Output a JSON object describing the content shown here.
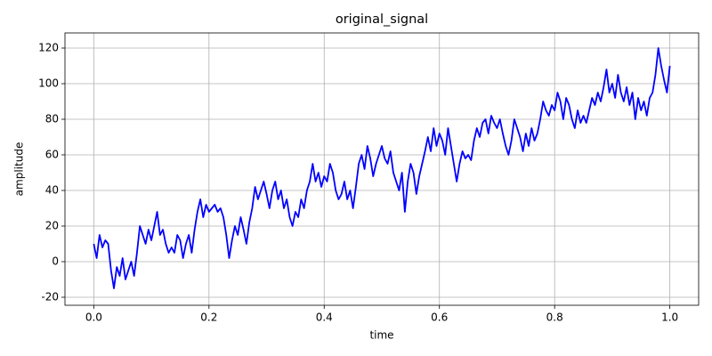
{
  "chart_data": {
    "type": "line",
    "title": "original_signal",
    "x_label": "time",
    "y_label": "amplitude",
    "color": "#0000ff",
    "grid": true,
    "xlim": [
      -0.05,
      1.05
    ],
    "ylim": [
      -24.5,
      128.5
    ],
    "xticks": [
      {
        "value": 0,
        "label": "0.0"
      },
      0.2,
      0.4,
      0.6,
      0.8,
      {
        "value": 1,
        "label": "1.0"
      }
    ],
    "yticks": [
      -20,
      0,
      20,
      40,
      60,
      80,
      100,
      120
    ],
    "x": [
      0,
      0.005,
      0.01,
      0.015,
      0.02,
      0.025,
      0.03,
      0.035,
      0.04,
      0.045,
      0.05,
      0.055,
      0.06,
      0.065,
      0.07,
      0.075,
      0.08,
      0.085,
      0.09,
      0.095,
      0.1,
      0.105,
      0.11,
      0.115,
      0.12,
      0.125,
      0.13,
      0.135,
      0.14,
      0.145,
      0.15,
      0.155,
      0.16,
      0.165,
      0.17,
      0.175,
      0.18,
      0.185,
      0.19,
      0.195,
      0.2,
      0.205,
      0.21,
      0.215,
      0.22,
      0.225,
      0.23,
      0.235,
      0.24,
      0.245,
      0.25,
      0.255,
      0.26,
      0.265,
      0.27,
      0.275,
      0.28,
      0.285,
      0.29,
      0.295,
      0.3,
      0.305,
      0.31,
      0.315,
      0.32,
      0.325,
      0.33,
      0.335,
      0.34,
      0.345,
      0.35,
      0.355,
      0.36,
      0.365,
      0.37,
      0.375,
      0.38,
      0.385,
      0.39,
      0.395,
      0.4,
      0.405,
      0.41,
      0.415,
      0.42,
      0.425,
      0.43,
      0.435,
      0.44,
      0.445,
      0.45,
      0.455,
      0.46,
      0.465,
      0.47,
      0.475,
      0.48,
      0.485,
      0.49,
      0.495,
      0.5,
      0.505,
      0.51,
      0.515,
      0.52,
      0.525,
      0.53,
      0.535,
      0.54,
      0.545,
      0.55,
      0.555,
      0.56,
      0.565,
      0.57,
      0.575,
      0.58,
      0.585,
      0.59,
      0.595,
      0.6,
      0.605,
      0.61,
      0.615,
      0.62,
      0.625,
      0.63,
      0.635,
      0.64,
      0.645,
      0.65,
      0.655,
      0.66,
      0.665,
      0.67,
      0.675,
      0.68,
      0.685,
      0.69,
      0.695,
      0.7,
      0.705,
      0.71,
      0.715,
      0.72,
      0.725,
      0.73,
      0.735,
      0.74,
      0.745,
      0.75,
      0.755,
      0.76,
      0.765,
      0.77,
      0.775,
      0.78,
      0.785,
      0.79,
      0.795,
      0.8,
      0.805,
      0.81,
      0.815,
      0.82,
      0.825,
      0.83,
      0.835,
      0.84,
      0.845,
      0.85,
      0.855,
      0.86,
      0.865,
      0.87,
      0.875,
      0.88,
      0.885,
      0.89,
      0.895,
      0.9,
      0.905,
      0.91,
      0.915,
      0.92,
      0.925,
      0.93,
      0.935,
      0.94,
      0.945,
      0.95,
      0.955,
      0.96,
      0.965,
      0.97,
      0.975,
      0.98,
      0.985,
      0.99,
      0.995,
      1
    ],
    "values": [
      10,
      2,
      15,
      8,
      12,
      10,
      -5,
      -15,
      -3,
      -8,
      2,
      -10,
      -5,
      0,
      -8,
      5,
      20,
      15,
      10,
      18,
      12,
      20,
      28,
      15,
      18,
      10,
      5,
      8,
      5,
      15,
      12,
      2,
      10,
      15,
      5,
      18,
      28,
      35,
      25,
      32,
      28,
      30,
      32,
      28,
      30,
      25,
      15,
      2,
      12,
      20,
      15,
      25,
      18,
      10,
      22,
      30,
      42,
      35,
      40,
      45,
      38,
      30,
      40,
      45,
      35,
      40,
      30,
      35,
      25,
      20,
      28,
      25,
      35,
      30,
      40,
      45,
      55,
      45,
      50,
      42,
      48,
      45,
      55,
      50,
      40,
      35,
      38,
      45,
      35,
      40,
      30,
      42,
      55,
      60,
      52,
      65,
      58,
      48,
      55,
      60,
      65,
      58,
      55,
      62,
      50,
      45,
      40,
      50,
      28,
      45,
      55,
      50,
      38,
      48,
      55,
      62,
      70,
      62,
      75,
      65,
      72,
      68,
      60,
      75,
      65,
      55,
      45,
      55,
      62,
      58,
      60,
      57,
      68,
      75,
      70,
      78,
      80,
      72,
      82,
      78,
      75,
      80,
      72,
      65,
      60,
      68,
      80,
      75,
      70,
      62,
      72,
      65,
      75,
      68,
      72,
      80,
      90,
      85,
      82,
      88,
      85,
      95,
      90,
      80,
      92,
      88,
      80,
      75,
      85,
      78,
      82,
      78,
      85,
      92,
      88,
      95,
      90,
      98,
      108,
      95,
      100,
      92,
      105,
      95,
      90,
      98,
      88,
      95,
      80,
      92,
      85,
      90,
      82,
      92,
      95,
      105,
      120,
      110,
      102,
      95,
      110
    ]
  }
}
